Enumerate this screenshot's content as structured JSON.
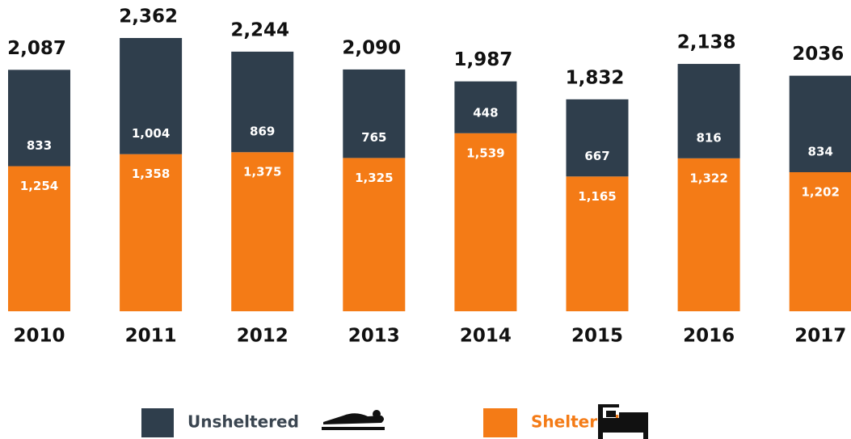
{
  "chart_data": {
    "type": "stacked_bar",
    "categories": [
      "2010",
      "2011",
      "2012",
      "2013",
      "2014",
      "2015",
      "2016",
      "2017"
    ],
    "series": [
      {
        "name": "Sheltered",
        "color": "#f47b16",
        "values": [
          1254,
          1358,
          1375,
          1325,
          1539,
          1165,
          1322,
          1202
        ],
        "value_labels": [
          "1,254",
          "1,358",
          "1,375",
          "1,325",
          "1,539",
          "1,165",
          "1,322",
          "1,202"
        ]
      },
      {
        "name": "Unsheltered",
        "color": "#2f3e4c",
        "values": [
          833,
          1004,
          869,
          765,
          448,
          667,
          816,
          834
        ],
        "value_labels": [
          "833",
          "1,004",
          "869",
          "765",
          "448",
          "667",
          "816",
          "834"
        ]
      }
    ],
    "totals": [
      2087,
      2362,
      2244,
      2090,
      1987,
      1832,
      2138,
      2036
    ],
    "total_labels": [
      "2,087",
      "2,362",
      "2,244",
      "2,090",
      "1,987",
      "1,832",
      "2,138",
      "2036"
    ]
  }
}
